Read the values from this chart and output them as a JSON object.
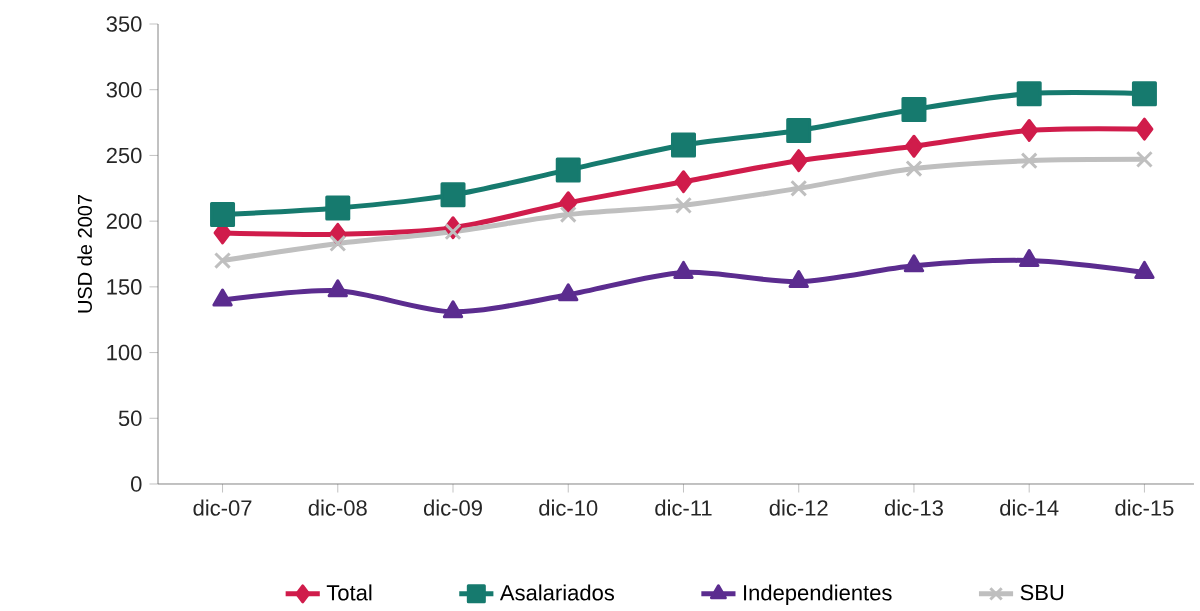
{
  "chart_data": {
    "type": "line",
    "ylabel": "USD de 2007",
    "categories": [
      "dic-07",
      "dic-08",
      "dic-09",
      "dic-10",
      "dic-11",
      "dic-12",
      "dic-13",
      "dic-14",
      "dic-15"
    ],
    "series": [
      {
        "name": "Total",
        "color": "#d01c4b",
        "marker": "diamond",
        "values": [
          191,
          190,
          195,
          214,
          230,
          246,
          257,
          269,
          270
        ]
      },
      {
        "name": "Asalariados",
        "color": "#167a6e",
        "marker": "square",
        "values": [
          205,
          210,
          220,
          239,
          258,
          269,
          285,
          297,
          297
        ]
      },
      {
        "name": "Independientes",
        "color": "#5b2c8f",
        "marker": "triangle",
        "values": [
          140,
          147,
          131,
          144,
          161,
          154,
          166,
          170,
          161
        ]
      },
      {
        "name": "SBU",
        "color": "#bfbfbf",
        "marker": "cross",
        "values": [
          170,
          183,
          192,
          205,
          212,
          225,
          240,
          246,
          247
        ]
      }
    ],
    "ylim": [
      0,
      350
    ],
    "yticks": [
      0,
      50,
      100,
      150,
      200,
      250,
      300,
      350
    ],
    "grid": false,
    "legend": "bottom"
  }
}
